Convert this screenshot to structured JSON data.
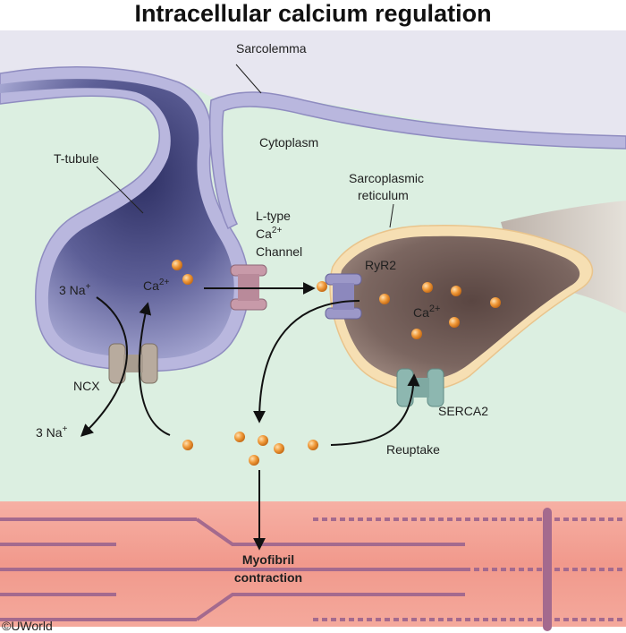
{
  "title": "Intracellular calcium regulation",
  "labels": {
    "sarcolemma": "Sarcolemma",
    "cytoplasm": "Cytoplasm",
    "t_tubule": "T-tubule",
    "sarcoplasmic_line1": "Sarcoplasmic",
    "sarcoplasmic_line2": "reticulum",
    "ltype_line1": "L-type",
    "ltype_ca": "Ca",
    "ltype_ca_sup": "2+",
    "ltype_line3": "Channel",
    "ryr2": "RyR2",
    "na_in": "3 Na",
    "na_in_sup": "+",
    "ca_ttubule": "Ca",
    "ca_ttubule_sup": "2+",
    "ca_sr": "Ca",
    "ca_sr_sup": "2+",
    "ncx": "NCX",
    "na_out": "3 Na",
    "na_out_sup": "+",
    "serca2": "SERCA2",
    "reuptake": "Reuptake",
    "myofibril_line1": "Myofibril",
    "myofibril_line2": "contraction",
    "copyright": "©UWorld"
  },
  "colors": {
    "cytoplasm_fill": "#dcefe1",
    "membrane": "#b7b5dc",
    "ttubule_inner": "#4d4f86",
    "sr_inner": "#6e5a55",
    "sr_membrane": "#f5dcb0",
    "myofibril": "#f2a79b",
    "calcium": "#ef9a3c",
    "ncx": "#b8ab9e",
    "ryr2": "#9c98c8",
    "ltype": "#c89aa9",
    "serca2": "#8db7b0"
  }
}
